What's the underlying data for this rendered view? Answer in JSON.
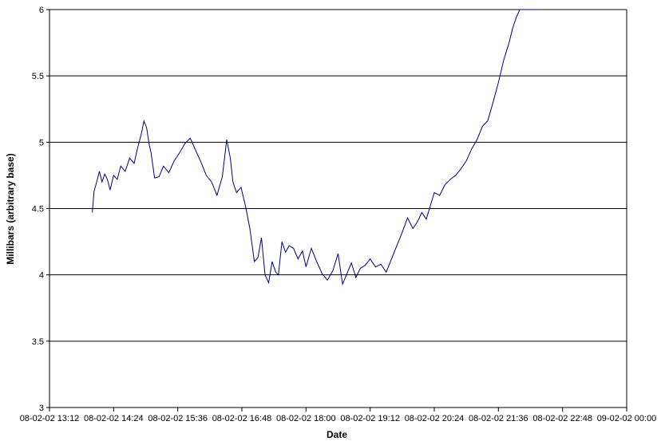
{
  "chart_data": {
    "type": "line",
    "title": "",
    "xlabel": "Date",
    "ylabel": "Millibars (arbitrary base)",
    "ylim": [
      3,
      6
    ],
    "xlim": [
      "08-02-02 13:12",
      "09-02-02 00:00"
    ],
    "yticks": [
      3,
      3.5,
      4,
      4.5,
      5,
      5.5,
      6
    ],
    "ytick_labels": [
      "3",
      "3.5",
      "4",
      "4.5",
      "5",
      "5.5",
      "6"
    ],
    "xticks": [
      "08-02-02 13:12",
      "08-02-02 14:24",
      "08-02-02 15:36",
      "08-02-02 16:48",
      "08-02-02 18:00",
      "08-02-02 19:12",
      "08-02-02 20:24",
      "08-02-02 21:36",
      "08-02-02 22:48",
      "09-02-02 00:00"
    ],
    "grid": "horizontal",
    "legend": "none",
    "line_color": "#000080",
    "series": [
      {
        "x": [
          "08-02-02 14:00",
          "08-02-02 14:02",
          "08-02-02 14:05",
          "08-02-02 14:08",
          "08-02-02 14:11",
          "08-02-02 14:14",
          "08-02-02 14:17",
          "08-02-02 14:20",
          "08-02-02 14:24",
          "08-02-02 14:28",
          "08-02-02 14:32",
          "08-02-02 14:37",
          "08-02-02 14:42",
          "08-02-02 14:47",
          "08-02-02 14:51",
          "08-02-02 14:55",
          "08-02-02 14:58",
          "08-02-02 15:01",
          "08-02-02 15:04",
          "08-02-02 15:06",
          "08-02-02 15:10",
          "08-02-02 15:15",
          "08-02-02 15:20",
          "08-02-02 15:26",
          "08-02-02 15:32",
          "08-02-02 15:38",
          "08-02-02 15:44",
          "08-02-02 15:50",
          "08-02-02 15:56",
          "08-02-02 16:02",
          "08-02-02 16:08",
          "08-02-02 16:14",
          "08-02-02 16:20",
          "08-02-02 16:26",
          "08-02-02 16:31",
          "08-02-02 16:35",
          "08-02-02 16:38",
          "08-02-02 16:42",
          "08-02-02 16:47",
          "08-02-02 16:52",
          "08-02-02 16:57",
          "08-02-02 17:02",
          "08-02-02 17:06",
          "08-02-02 17:10",
          "08-02-02 17:14",
          "08-02-02 17:18",
          "08-02-02 17:22",
          "08-02-02 17:26",
          "08-02-02 17:29",
          "08-02-02 17:33",
          "08-02-02 17:37",
          "08-02-02 17:41",
          "08-02-02 17:46",
          "08-02-02 17:51",
          "08-02-02 17:56",
          "08-02-02 18:00",
          "08-02-02 18:06",
          "08-02-02 18:12",
          "08-02-02 18:18",
          "08-02-02 18:24",
          "08-02-02 18:30",
          "08-02-02 18:36",
          "08-02-02 18:41",
          "08-02-02 18:46",
          "08-02-02 18:51",
          "08-02-02 18:56",
          "08-02-02 19:01",
          "08-02-02 19:06",
          "08-02-02 19:12",
          "08-02-02 19:18",
          "08-02-02 19:24",
          "08-02-02 19:30",
          "08-02-02 19:36",
          "08-02-02 19:42",
          "08-02-02 19:48",
          "08-02-02 19:54",
          "08-02-02 20:00",
          "08-02-02 20:05",
          "08-02-02 20:10",
          "08-02-02 20:15",
          "08-02-02 20:20",
          "08-02-02 20:24",
          "08-02-02 20:30",
          "08-02-02 20:36",
          "08-02-02 20:42",
          "08-02-02 20:48",
          "08-02-02 20:54",
          "08-02-02 21:00",
          "08-02-02 21:06",
          "08-02-02 21:12",
          "08-02-02 21:18",
          "08-02-02 21:24",
          "08-02-02 21:30",
          "08-02-02 21:36",
          "08-02-02 21:42",
          "08-02-02 21:48",
          "08-02-02 21:52",
          "08-02-02 21:56",
          "08-02-02 22:00",
          "08-02-02 22:04",
          "08-02-02 22:08",
          "08-02-02 22:12",
          "08-02-02 22:16",
          "08-02-02 22:20",
          "08-02-02 22:24"
        ],
        "y": [
          4.47,
          4.63,
          4.7,
          4.78,
          4.7,
          4.76,
          4.72,
          4.64,
          4.75,
          4.72,
          4.82,
          4.78,
          4.88,
          4.84,
          4.96,
          5.06,
          5.16,
          5.11,
          4.98,
          4.92,
          4.73,
          4.74,
          4.82,
          4.77,
          4.86,
          4.92,
          4.99,
          5.03,
          4.94,
          4.85,
          4.75,
          4.7,
          4.6,
          4.74,
          5.02,
          4.88,
          4.7,
          4.62,
          4.66,
          4.52,
          4.35,
          4.1,
          4.13,
          4.28,
          4.0,
          3.94,
          4.1,
          4.02,
          4.0,
          4.25,
          4.17,
          4.22,
          4.2,
          4.12,
          4.18,
          4.06,
          4.2,
          4.1,
          4.01,
          3.96,
          4.03,
          4.16,
          3.93,
          4.01,
          4.09,
          3.98,
          4.05,
          4.07,
          4.12,
          4.06,
          4.08,
          4.02,
          4.12,
          4.22,
          4.32,
          4.43,
          4.35,
          4.4,
          4.47,
          4.42,
          4.53,
          4.62,
          4.6,
          4.68,
          4.72,
          4.75,
          4.8,
          4.86,
          4.95,
          5.02,
          5.12,
          5.16,
          5.3,
          5.45,
          5.62,
          5.75,
          5.86,
          5.94,
          6.0,
          6.0,
          6.0,
          6.0,
          6.0,
          6.0,
          6.0
        ]
      }
    ]
  }
}
